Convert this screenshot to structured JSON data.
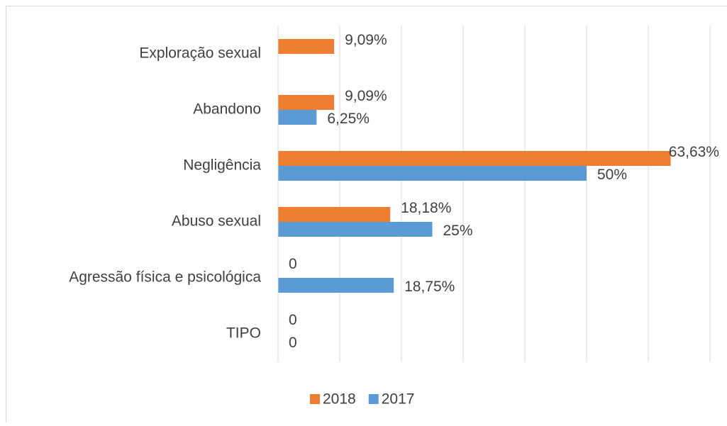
{
  "chart_data": {
    "type": "barh",
    "categories": [
      "TIPO",
      "Agressão física e psicológica",
      "Abuso sexual",
      "Negligência",
      "Abandono",
      "Exploração sexual"
    ],
    "series": [
      {
        "name": "2018",
        "color": "#ed7d31",
        "values": [
          0,
          0,
          18.18,
          63.63,
          9.09,
          9.09
        ],
        "value_labels": [
          "0",
          "0",
          "18,18%",
          "63,63%",
          "9,09%",
          "9,09%"
        ]
      },
      {
        "name": "2017",
        "color": "#5b9bd5",
        "values": [
          0,
          18.75,
          25,
          50,
          6.25,
          null
        ],
        "value_labels": [
          "0",
          "18,75%",
          "25%",
          "50%",
          "6,25%",
          null
        ]
      }
    ],
    "xlim": [
      0,
      70
    ],
    "xticks": [
      0,
      10,
      20,
      30,
      40,
      50,
      60,
      70
    ],
    "grid": true,
    "legend": "bottom"
  }
}
